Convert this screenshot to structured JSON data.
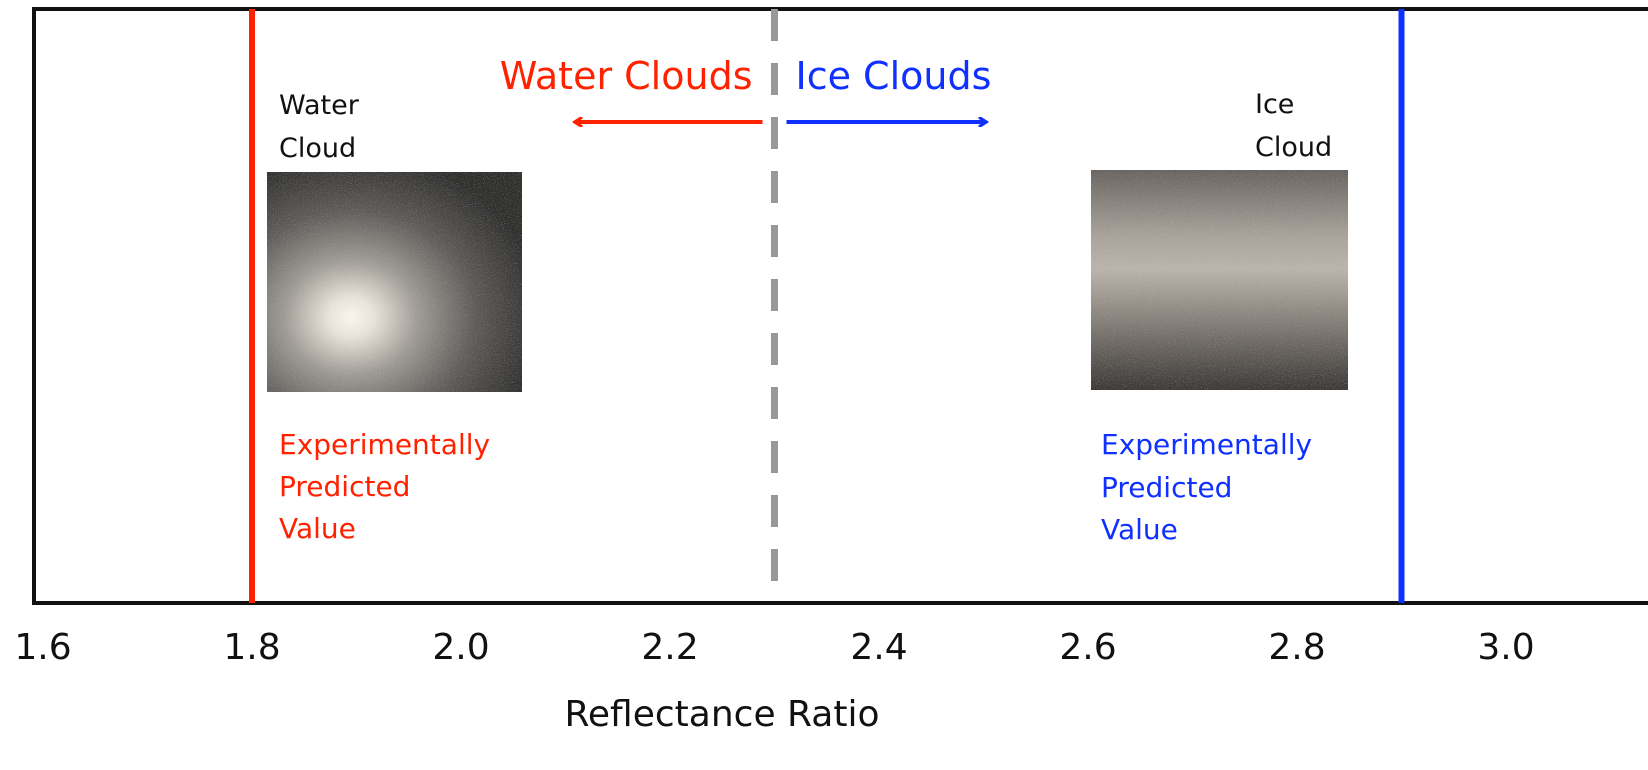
{
  "chart_data": {
    "type": "diagram",
    "xlabel": "Reflectance Ratio",
    "xlim": [
      1.6,
      3.1
    ],
    "ticks": [
      {
        "value": 1.6,
        "label": "1.6"
      },
      {
        "value": 1.8,
        "label": "1.8"
      },
      {
        "value": 2.0,
        "label": "2.0"
      },
      {
        "value": 2.2,
        "label": "2.2"
      },
      {
        "value": 2.4,
        "label": "2.4"
      },
      {
        "value": 2.6,
        "label": "2.6"
      },
      {
        "value": 2.8,
        "label": "2.8"
      },
      {
        "value": 3.0,
        "label": "3.0"
      }
    ],
    "threshold": {
      "value": 2.3,
      "left_label": "Water Clouds",
      "right_label": "Ice Clouds",
      "left_color": "#ff2200",
      "right_color": "#1030ff",
      "line_color": "#999999"
    },
    "markers": [
      {
        "value": 1.8,
        "color": "#ff2200",
        "sample_label": [
          "Water",
          "Cloud"
        ],
        "note": [
          "Experimentally",
          "Predicted",
          "Value"
        ],
        "image": "water-cloud-photo"
      },
      {
        "value": 2.9,
        "color": "#1030ff",
        "sample_label": [
          "Ice",
          "Cloud"
        ],
        "note": [
          "Experimentally",
          "Predicted",
          "Value"
        ],
        "image": "ice-cloud-photo"
      }
    ]
  }
}
